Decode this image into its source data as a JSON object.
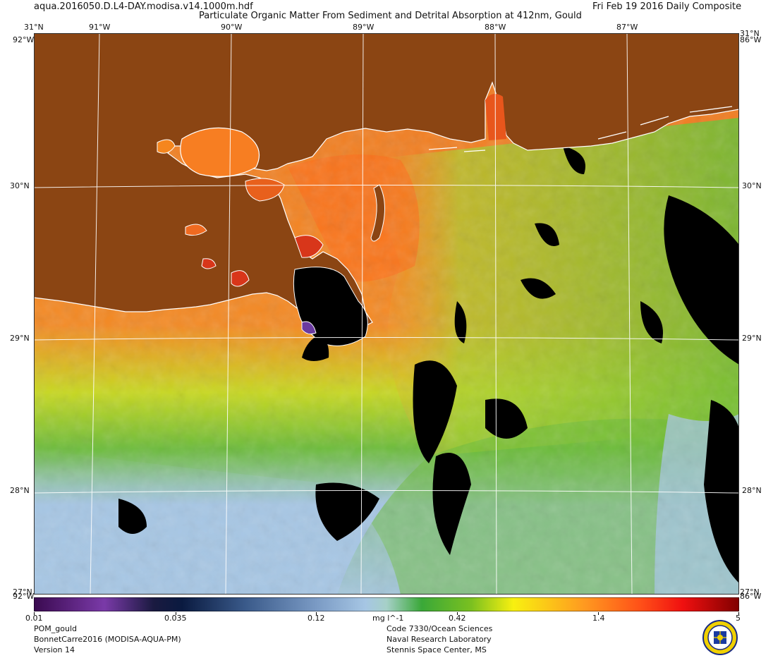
{
  "header": {
    "filename": "aqua.2016050.D.L4-DAY.modisa.v14.1000m.hdf",
    "title": "Particulate Organic Matter From Sediment and Detrital Absorption at 412nm, Gould",
    "date": "Fri Feb 19 2016 Daily Composite"
  },
  "map": {
    "lon_labels": [
      "91°W",
      "90°W",
      "89°W",
      "88°W",
      "87°W"
    ],
    "lat_labels": [
      "31°N",
      "30°N",
      "29°N",
      "28°N"
    ],
    "corner_lat_top": "31°N",
    "corner_lon_left": "92°W",
    "corner_lon_right": "86°W",
    "bottom_lat": "27°N",
    "colors": {
      "land": "#8B4513",
      "no_data": "#000000",
      "coast": "#ffffff"
    }
  },
  "colorbar": {
    "tick_labels": [
      "0.01",
      "0.035",
      "0.12",
      "0.42",
      "1.4",
      "5"
    ],
    "units": "mg l^-1",
    "scale": "log",
    "range": [
      0.01,
      5
    ]
  },
  "footer": {
    "left": [
      "POM_gould",
      "BonnetCarre2016 (MODISA-AQUA-PM)",
      "Version 14"
    ],
    "right": [
      "Code 7330/Ocean Sciences",
      "Naval Research Laboratory",
      "Stennis Space Center, MS"
    ]
  }
}
